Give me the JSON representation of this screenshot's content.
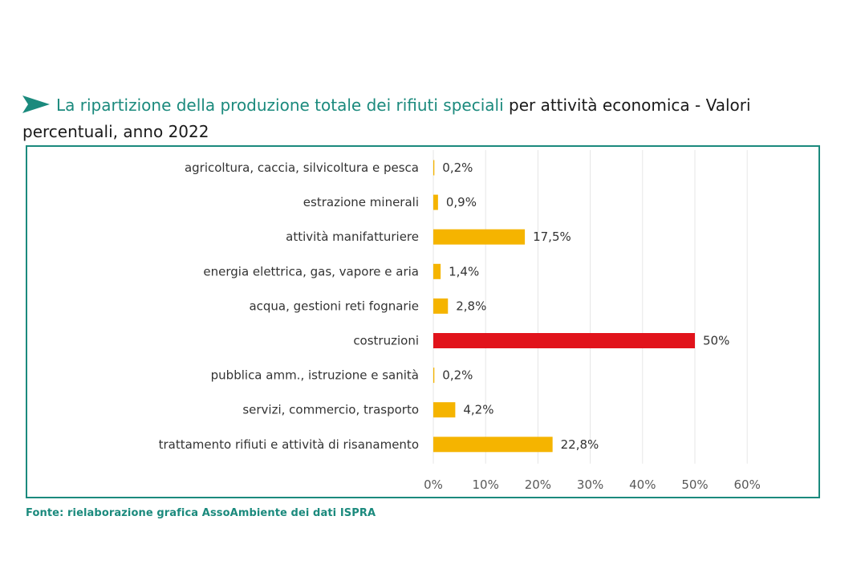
{
  "title": {
    "highlight": "La ripartizione della produzione totale dei rifiuti speciali",
    "rest": " per attività economica - Valori percentuali, anno 2022"
  },
  "source": "Fonte: rielaborazione grafica AssoAmbiente dei dati ISPRA",
  "colors": {
    "accent": "#1b8a7d",
    "bar": "#f5b400",
    "highlight_bar": "#e1131b",
    "grid": "#e6e6e6",
    "text": "#333333"
  },
  "chart_data": {
    "type": "bar",
    "orientation": "horizontal",
    "categories": [
      "agricoltura, caccia, silvicoltura e pesca",
      "estrazione minerali",
      "attività manifatturiere",
      "energia elettrica, gas, vapore e aria",
      "acqua, gestioni reti fognarie",
      "costruzioni",
      "pubblica amm., istruzione e sanità",
      "servizi, commercio, trasporto",
      "trattamento rifiuti e attività di risanamento"
    ],
    "values": [
      0.2,
      0.9,
      17.5,
      1.4,
      2.8,
      50,
      0.2,
      4.2,
      22.8
    ],
    "value_labels": [
      "0,2%",
      "0,9%",
      "17,5%",
      "1,4%",
      "2,8%",
      "50%",
      "0,2%",
      "4,2%",
      "22,8%"
    ],
    "highlight_index": 5,
    "xlim": [
      0,
      60
    ],
    "xticks": [
      0,
      10,
      20,
      30,
      40,
      50,
      60
    ],
    "xtick_labels": [
      "0%",
      "10%",
      "20%",
      "30%",
      "40%",
      "50%",
      "60%"
    ],
    "grid": true,
    "legend": "none"
  }
}
